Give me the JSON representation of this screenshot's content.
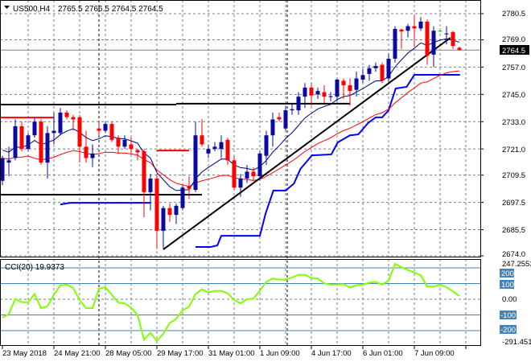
{
  "header": {
    "symbol": "US500,H4",
    "ohlc": "2765.5 2766.5 2764.5 2764.5"
  },
  "price_axis": {
    "labels": [
      "2780.5",
      "2769.0",
      "2757.0",
      "2745.0",
      "2733.0",
      "2721.0",
      "2709.5",
      "2697.5",
      "2685.5",
      "2674.0"
    ],
    "current": "2764.5"
  },
  "indicator": {
    "title": "CCI(20) 19.9373",
    "max_label": "247.2553",
    "min_label": "-291.451",
    "levels": [
      "200",
      "100",
      "0.00",
      "-100",
      "-200"
    ]
  },
  "time_axis": [
    "23 May 2018",
    "24 May 21:00",
    "28 May 05:00",
    "29 May 17:00",
    "31 May 01:00",
    "1 Jun 09:00",
    "4 Jun 17:00",
    "6 Jun 01:00",
    "7 Jun 09:00"
  ],
  "colors": {
    "bull": "#0a0aa0",
    "bear": "#ff0000",
    "doji": "#00c000",
    "ma_fast": "#000080",
    "ma_slow": "#ff0000",
    "support_line": "#0000ff",
    "cci": "#80ff00",
    "level_line": "#4682b4"
  },
  "chart_data": {
    "type": "candlestick",
    "ylim": [
      2674.0,
      2780.5
    ],
    "candles": [
      [
        2707,
        2718,
        2705,
        2717
      ],
      [
        2715,
        2722,
        2709,
        2716
      ],
      [
        2717,
        2734,
        2716,
        2731
      ],
      [
        2731,
        2733,
        2720,
        2721
      ],
      [
        2721,
        2728,
        2720,
        2727
      ],
      [
        2727,
        2735,
        2726,
        2733
      ],
      [
        2733,
        2734,
        2714,
        2715
      ],
      [
        2715,
        2731,
        2708,
        2728
      ],
      [
        2728,
        2737,
        2723,
        2729
      ],
      [
        2728,
        2739,
        2727,
        2737
      ],
      [
        2737,
        2738,
        2734,
        2735
      ],
      [
        2735,
        2736,
        2729,
        2734
      ],
      [
        2735,
        2736,
        2715,
        2722
      ],
      [
        2722,
        2729,
        2715,
        2717
      ],
      [
        2717,
        2723,
        2713,
        2719
      ],
      [
        2730,
        2733,
        2727,
        2729
      ],
      [
        2729,
        2733,
        2728,
        2732
      ],
      [
        2732,
        2733,
        2724,
        2725
      ],
      [
        2726,
        2727,
        2719,
        2722
      ],
      [
        2722,
        2727,
        2721,
        2725
      ],
      [
        2723,
        2726,
        2719,
        2721
      ],
      [
        2720.5,
        2721,
        2716,
        2719.5
      ],
      [
        2720,
        2721,
        2691,
        2702
      ],
      [
        2702,
        2710,
        2694,
        2708
      ],
      [
        2708,
        2710,
        2677,
        2685
      ],
      [
        2685,
        2696,
        2677,
        2695
      ],
      [
        2695,
        2697,
        2689,
        2692
      ],
      [
        2692,
        2697,
        2688,
        2696
      ],
      [
        2695,
        2705,
        2694,
        2704
      ],
      [
        2704.5,
        2709,
        2699,
        2703.5
      ],
      [
        2703,
        2733,
        2702,
        2727
      ],
      [
        2727,
        2734,
        2722,
        2723
      ],
      [
        2719,
        2723,
        2717,
        2721
      ],
      [
        2721,
        2724,
        2720,
        2722
      ],
      [
        2721,
        2727,
        2717,
        2724
      ],
      [
        2725,
        2726,
        2714,
        2716
      ],
      [
        2716,
        2718,
        2703,
        2704
      ],
      [
        2704,
        2710,
        2700,
        2708
      ],
      [
        2708,
        2714,
        2706,
        2711
      ],
      [
        2711,
        2713,
        2707,
        2709
      ],
      [
        2709,
        2720,
        2707,
        2719
      ],
      [
        2718,
        2729,
        2714,
        2727
      ],
      [
        2727,
        2737,
        2722,
        2734
      ],
      [
        2735,
        2737,
        2733,
        2734
      ],
      [
        2730,
        2740,
        2729,
        2738
      ],
      [
        2738,
        2741,
        2736,
        2738.5
      ],
      [
        2738,
        2746,
        2736,
        2744
      ],
      [
        2744,
        2750,
        2739,
        2748
      ],
      [
        2748,
        2750,
        2740,
        2744.5
      ],
      [
        2745,
        2748,
        2743,
        2746.5
      ],
      [
        2746,
        2749,
        2741,
        2744
      ],
      [
        2743.8,
        2746,
        2742,
        2744.2
      ],
      [
        2744,
        2752,
        2742,
        2751.5
      ],
      [
        2751,
        2752,
        2743,
        2749
      ],
      [
        2749,
        2752,
        2740,
        2746.5
      ],
      [
        2747,
        2755,
        2744,
        2752
      ],
      [
        2751.5,
        2756,
        2750,
        2753.5
      ],
      [
        2754,
        2758,
        2751,
        2756.5
      ],
      [
        2756.5,
        2759,
        2755,
        2757.5
      ],
      [
        2758,
        2759,
        2750,
        2751
      ],
      [
        2752,
        2763,
        2750,
        2760.7
      ],
      [
        2760.7,
        2775,
        2759,
        2773.8
      ],
      [
        2773.5,
        2774,
        2765,
        2772.7
      ],
      [
        2773,
        2776,
        2770,
        2775
      ],
      [
        2775,
        2780,
        2766,
        2774
      ],
      [
        2774,
        2779,
        2773,
        2777
      ],
      [
        2777,
        2778,
        2758,
        2762
      ],
      [
        2762.5,
        2775,
        2757,
        2773
      ],
      [
        2773,
        2774,
        2772.5,
        2773
      ],
      [
        2771.4,
        2775,
        2767,
        2771.8
      ],
      [
        2772.4,
        2773,
        2765,
        2766.3
      ],
      [
        2765.5,
        2766,
        2764.5,
        2764.5
      ]
    ],
    "support_steps": [
      [
        [
          9,
          2696.6
        ],
        [
          10.6,
          2697.3
        ],
        [
          23,
          2697.3
        ]
      ],
      [
        [
          30,
          2677.9
        ],
        [
          32.4,
          2677.9
        ],
        [
          33.4,
          2678.6
        ],
        [
          34,
          2682.8
        ],
        [
          40,
          2682.8
        ],
        [
          40.9,
          2692.7
        ],
        [
          42.1,
          2702.7
        ],
        [
          44,
          2702.7
        ],
        [
          45.3,
          2705.8
        ],
        [
          46.3,
          2712.2
        ],
        [
          48.1,
          2718.2
        ],
        [
          51.1,
          2718.6
        ],
        [
          52.1,
          2723.9
        ],
        [
          54,
          2727
        ],
        [
          55.3,
          2727.4
        ],
        [
          56.8,
          2732.4
        ],
        [
          58,
          2734.9
        ],
        [
          59,
          2734.9
        ],
        [
          60,
          2738
        ],
        [
          61.1,
          2747.6
        ],
        [
          62.8,
          2748.3
        ],
        [
          64,
          2753.6
        ],
        [
          71.1,
          2753.6
        ]
      ]
    ],
    "horizontal_lines": [
      {
        "color": "#000000",
        "price": 2740.5,
        "from": -0.4,
        "to": 27
      },
      {
        "color": "#000000",
        "price": 2740.9,
        "from": 27,
        "to": 54
      },
      {
        "color": "#000000",
        "price": 2700.9,
        "from": -0.4,
        "to": 31
      },
      {
        "color": "#ff0000",
        "price": 2734.8,
        "from": -0.4,
        "to": 8
      },
      {
        "color": "#ff0000",
        "price": 2720.3,
        "from": 24,
        "to": 29
      }
    ],
    "trendline": [
      [
        25,
        2676.8
      ],
      [
        69.6,
        2769.9
      ]
    ],
    "cci": [
      -117,
      -94,
      3,
      -19,
      -19,
      34,
      -57,
      -45,
      29,
      89,
      93,
      72,
      -5,
      -57,
      -57,
      67,
      77,
      29,
      -22,
      -26,
      -53,
      -100,
      -259,
      -214,
      -266,
      -220,
      -151,
      -125,
      -70,
      -48,
      33,
      63,
      43,
      53,
      53,
      38,
      -5,
      -26,
      0,
      3,
      55,
      111,
      132,
      125,
      125,
      139,
      156,
      156,
      136,
      132,
      101,
      93,
      94,
      96,
      75,
      89,
      93,
      106,
      110,
      94,
      118,
      226,
      204,
      187,
      170,
      153,
      81,
      81,
      93,
      77,
      50,
      21
    ],
    "cci_range": [
      -291.451,
      247.2553
    ]
  }
}
